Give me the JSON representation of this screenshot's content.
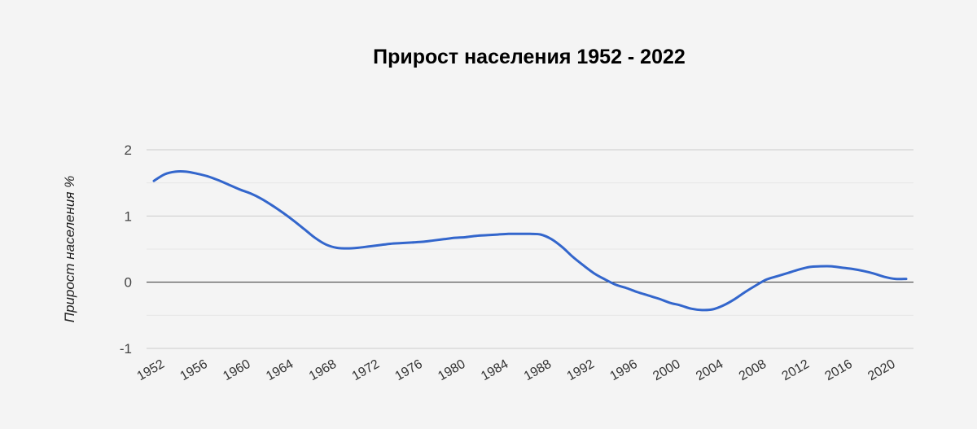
{
  "chart_data": {
    "type": "line",
    "title": "Прирост населения 1952 - 2022",
    "xlabel": "",
    "ylabel": "Прирост населения %",
    "ylim": [
      -1,
      2
    ],
    "yticks": [
      2,
      1,
      0,
      -1
    ],
    "xticks": [
      1952,
      1956,
      1960,
      1964,
      1968,
      1972,
      1976,
      1980,
      1984,
      1988,
      1992,
      1996,
      2000,
      2004,
      2008,
      2012,
      2016,
      2020
    ],
    "xlim": [
      1952,
      2022
    ],
    "grid": true,
    "line_color": "#3366cc",
    "series": [
      {
        "x": [
          1952,
          1953,
          1954,
          1955,
          1956,
          1957,
          1958,
          1959,
          1960,
          1961,
          1962,
          1963,
          1964,
          1965,
          1966,
          1967,
          1968,
          1969,
          1970,
          1971,
          1972,
          1973,
          1974,
          1975,
          1976,
          1977,
          1978,
          1979,
          1980,
          1981,
          1982,
          1983,
          1984,
          1985,
          1986,
          1987,
          1988,
          1989,
          1990,
          1991,
          1992,
          1993,
          1994,
          1995,
          1996,
          1997,
          1998,
          1999,
          2000,
          2001,
          2002,
          2003,
          2004,
          2005,
          2006,
          2007,
          2008,
          2009,
          2010,
          2011,
          2012,
          2013,
          2014,
          2015,
          2016,
          2017,
          2018,
          2019,
          2020,
          2021,
          2022
        ],
        "values": [
          1.53,
          1.63,
          1.67,
          1.67,
          1.64,
          1.6,
          1.54,
          1.47,
          1.4,
          1.34,
          1.26,
          1.16,
          1.05,
          0.93,
          0.8,
          0.67,
          0.57,
          0.52,
          0.51,
          0.52,
          0.54,
          0.56,
          0.58,
          0.59,
          0.6,
          0.61,
          0.63,
          0.65,
          0.67,
          0.68,
          0.7,
          0.71,
          0.72,
          0.73,
          0.73,
          0.73,
          0.72,
          0.65,
          0.53,
          0.38,
          0.25,
          0.13,
          0.04,
          -0.04,
          -0.09,
          -0.15,
          -0.2,
          -0.25,
          -0.31,
          -0.35,
          -0.4,
          -0.42,
          -0.41,
          -0.35,
          -0.26,
          -0.15,
          -0.05,
          0.04,
          0.09,
          0.14,
          0.19,
          0.23,
          0.24,
          0.24,
          0.22,
          0.2,
          0.17,
          0.13,
          0.08,
          0.05,
          0.05
        ]
      }
    ]
  }
}
